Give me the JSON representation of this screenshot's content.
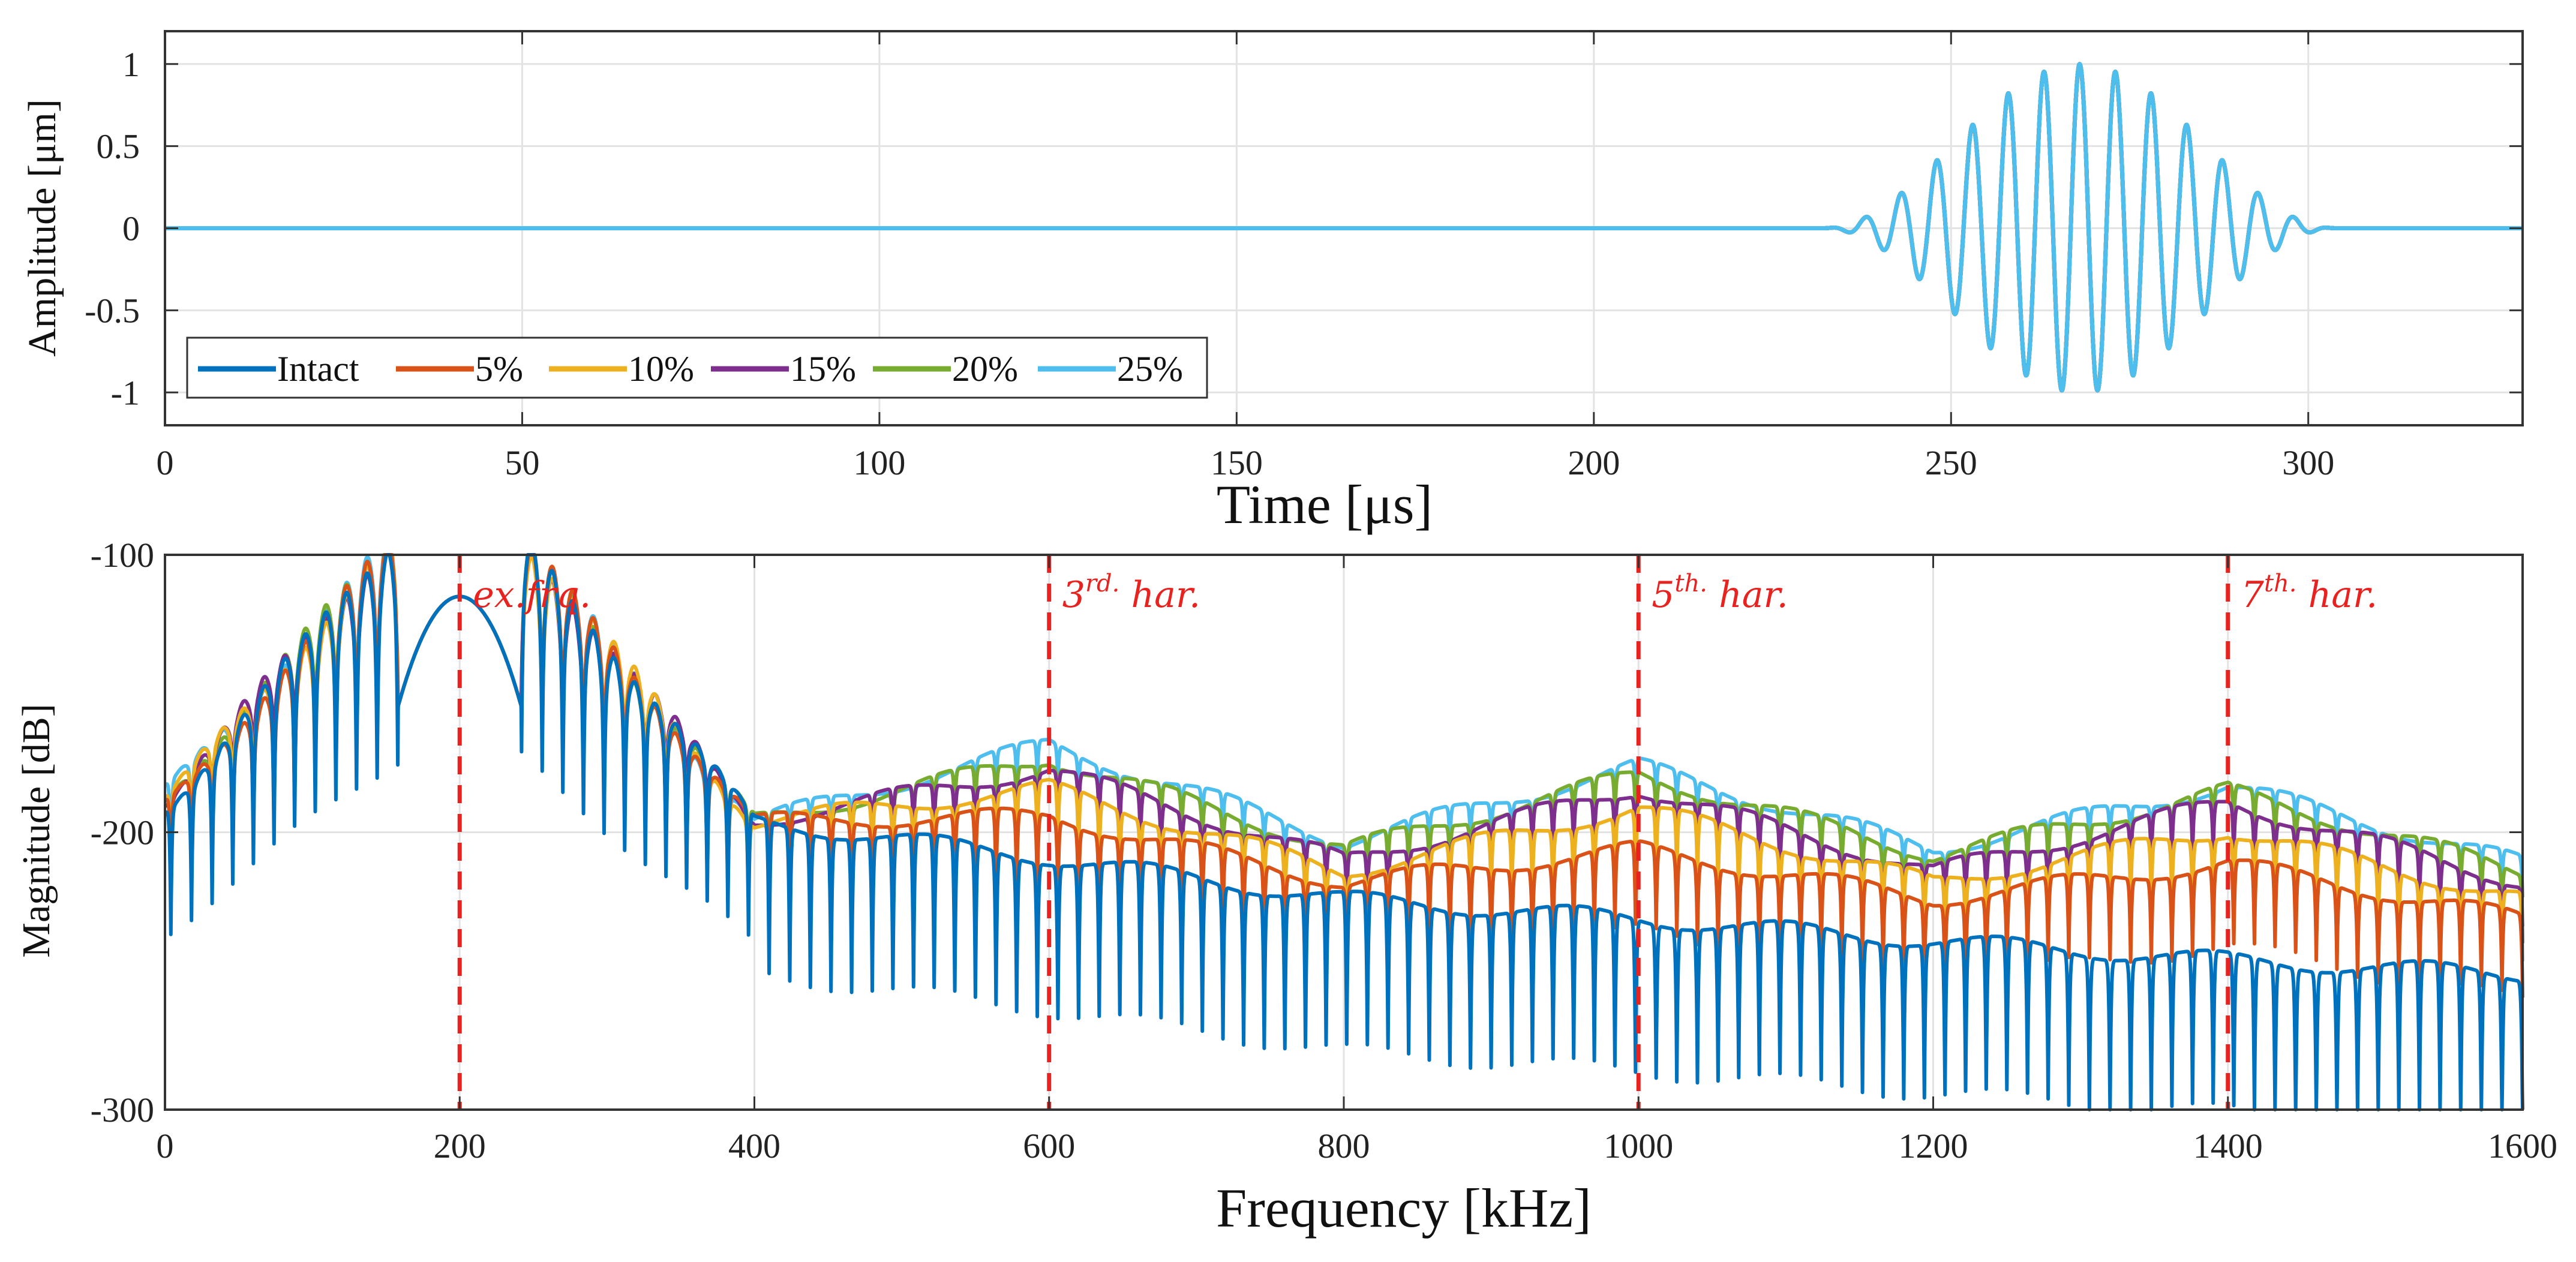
{
  "colors": {
    "Intact": "#0072BD",
    "5%": "#D95319",
    "10%": "#EDB120",
    "15%": "#7E2F8E",
    "20%": "#77AC30",
    "25%": "#4DBEEE",
    "marker": "#e8231f"
  },
  "chart_data": [
    {
      "type": "line",
      "title": "",
      "xlabel": "Time [μs]",
      "ylabel": "Amplitude [μm]",
      "xlim": [
        0,
        330
      ],
      "ylim": [
        -1.2,
        1.2
      ],
      "xticks": [
        0,
        50,
        100,
        150,
        200,
        250,
        300
      ],
      "yticks": [
        1,
        0.5,
        0,
        -0.5,
        -1
      ],
      "xtick_labels": [
        "0",
        "50",
        "100",
        "150",
        "200",
        "250",
        "300"
      ],
      "ytick_labels": [
        "1",
        "0.5",
        "0",
        "-0.5",
        "-1"
      ],
      "grid": true,
      "legend_position": "bottom-left",
      "legend": [
        "Intact",
        "5%",
        "10%",
        "15%",
        "20%",
        "25%"
      ],
      "signal": {
        "description": "Hann-windowed tone burst, identical for all damage levels",
        "start_us": 232,
        "end_us": 304,
        "center_us": 268,
        "carrier_kHz": 200,
        "peak_amplitude": 1.0,
        "baseline": 0
      }
    },
    {
      "type": "line",
      "title": "",
      "xlabel": "Frequency [kHz]",
      "ylabel": "Magnitude [dB]",
      "xlim": [
        0,
        1600
      ],
      "ylim": [
        -300,
        -100
      ],
      "xticks": [
        0,
        200,
        400,
        600,
        800,
        1000,
        1200,
        1400,
        1600
      ],
      "yticks": [
        -100,
        -200,
        -300
      ],
      "xtick_labels": [
        "0",
        "200",
        "400",
        "600",
        "800",
        "1000",
        "1200",
        "1400",
        "1600"
      ],
      "ytick_labels": [
        "-100",
        "-200",
        "-300"
      ],
      "grid": true,
      "markers": [
        {
          "x": 200,
          "label": "ex.frq.",
          "sup": ""
        },
        {
          "x": 600,
          "label": "3",
          "sup": "rd.",
          "suffix": " har."
        },
        {
          "x": 1000,
          "label": "5",
          "sup": "th.",
          "suffix": " har."
        },
        {
          "x": 1400,
          "label": "7",
          "sup": "th.",
          "suffix": " har."
        }
      ],
      "excitation_peak": {
        "frequency_kHz": 200,
        "magnitude_dB": -115
      },
      "series": [
        {
          "name": "Intact",
          "envelope_dB": [
            [
              0,
              -195
            ],
            [
              200,
              -115
            ],
            [
              400,
              -200
            ],
            [
              600,
              -213
            ],
            [
              800,
              -228
            ],
            [
              1000,
              -235
            ],
            [
              1200,
              -243
            ],
            [
              1400,
              -250
            ],
            [
              1600,
              -255
            ]
          ],
          "notch_depth_dB": 55
        },
        {
          "name": "5%",
          "envelope_dB": [
            [
              0,
              -195
            ],
            [
              200,
              -115
            ],
            [
              400,
              -200
            ],
            [
              600,
              -198
            ],
            [
              800,
              -222
            ],
            [
              1000,
              -210
            ],
            [
              1200,
              -228
            ],
            [
              1400,
              -215
            ],
            [
              1600,
              -235
            ]
          ],
          "notch_depth_dB": 30
        },
        {
          "name": "10%",
          "envelope_dB": [
            [
              0,
              -193
            ],
            [
              200,
              -115
            ],
            [
              400,
              -200
            ],
            [
              600,
              -188
            ],
            [
              800,
              -218
            ],
            [
              1000,
              -195
            ],
            [
              1200,
              -222
            ],
            [
              1400,
              -203
            ],
            [
              1600,
              -228
            ]
          ],
          "notch_depth_dB": 25
        },
        {
          "name": "15%",
          "envelope_dB": [
            [
              0,
              -192
            ],
            [
              200,
              -115
            ],
            [
              400,
              -200
            ],
            [
              600,
              -181
            ],
            [
              800,
              -214
            ],
            [
              1000,
              -188
            ],
            [
              1200,
              -218
            ],
            [
              1400,
              -193
            ],
            [
              1600,
              -222
            ]
          ],
          "notch_depth_dB": 20
        },
        {
          "name": "20%",
          "envelope_dB": [
            [
              0,
              -191
            ],
            [
              200,
              -115
            ],
            [
              400,
              -200
            ],
            [
              600,
              -177
            ],
            [
              800,
              -210
            ],
            [
              1000,
              -183
            ],
            [
              1200,
              -212
            ],
            [
              1400,
              -189
            ],
            [
              1600,
              -218
            ]
          ],
          "notch_depth_dB": 18
        },
        {
          "name": "25%",
          "envelope_dB": [
            [
              0,
              -190
            ],
            [
              200,
              -115
            ],
            [
              400,
              -200
            ],
            [
              600,
              -172
            ],
            [
              800,
              -207
            ],
            [
              1000,
              -180
            ],
            [
              1200,
              -210
            ],
            [
              1400,
              -187
            ],
            [
              1600,
              -215
            ]
          ],
          "notch_depth_dB": 15
        }
      ]
    }
  ]
}
